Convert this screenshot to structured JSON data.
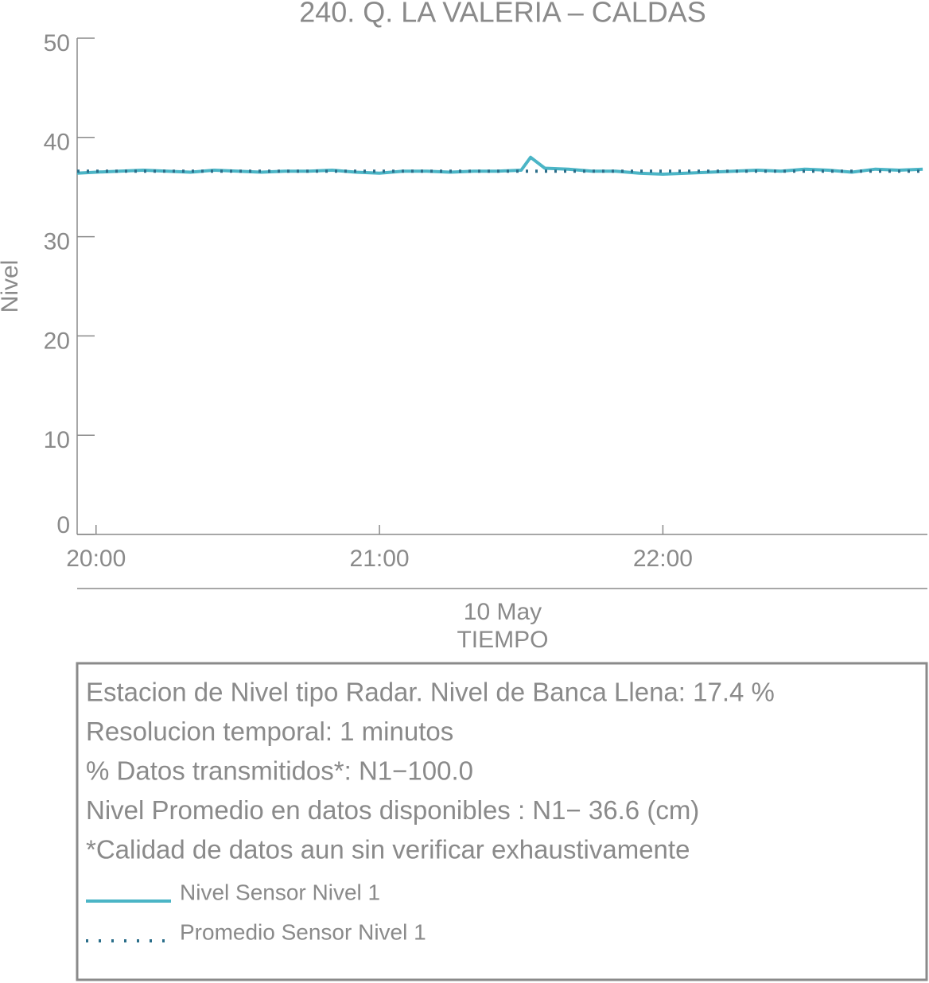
{
  "chart_data": {
    "type": "line",
    "title": "240. Q. LA VALERIA – CALDAS",
    "x_label": "TIEMPO",
    "date_label": "10 May",
    "y_label": "Nivel",
    "x": [
      "19:56",
      "20:00",
      "20:05",
      "20:10",
      "20:15",
      "20:20",
      "20:25",
      "20:30",
      "20:35",
      "20:40",
      "20:45",
      "20:50",
      "20:55",
      "21:00",
      "21:05",
      "21:10",
      "21:15",
      "21:20",
      "21:25",
      "21:30",
      "21:32",
      "21:35",
      "21:40",
      "21:45",
      "21:50",
      "21:55",
      "22:00",
      "22:05",
      "22:10",
      "22:15",
      "22:20",
      "22:25",
      "22:30",
      "22:35",
      "22:40",
      "22:45",
      "22:50",
      "22:55"
    ],
    "series": [
      {
        "name": "Nivel Sensor Nivel 1",
        "color": "#4bb5c6",
        "style": "solid",
        "values": [
          36.4,
          36.5,
          36.6,
          36.7,
          36.6,
          36.5,
          36.7,
          36.6,
          36.5,
          36.6,
          36.6,
          36.7,
          36.5,
          36.4,
          36.6,
          36.6,
          36.5,
          36.6,
          36.6,
          36.7,
          38.0,
          36.9,
          36.8,
          36.6,
          36.6,
          36.4,
          36.3,
          36.4,
          36.5,
          36.6,
          36.7,
          36.6,
          36.8,
          36.7,
          36.5,
          36.8,
          36.7,
          36.8
        ]
      },
      {
        "name": "Promedio Sensor Nivel 1",
        "color": "#2b6e8a",
        "style": "dotted",
        "values": [
          36.6,
          36.6,
          36.6,
          36.6,
          36.6,
          36.6,
          36.6,
          36.6,
          36.6,
          36.6,
          36.6,
          36.6,
          36.6,
          36.6,
          36.6,
          36.6,
          36.6,
          36.6,
          36.6,
          36.6,
          36.6,
          36.6,
          36.6,
          36.6,
          36.6,
          36.6,
          36.6,
          36.6,
          36.6,
          36.6,
          36.6,
          36.6,
          36.6,
          36.6,
          36.6,
          36.6,
          36.6,
          36.6
        ]
      }
    ],
    "xlim": [
      "19:56",
      "22:56"
    ],
    "xticks": [
      "20:00",
      "21:00",
      "22:00"
    ],
    "ylim": [
      0,
      50
    ],
    "yticks": [
      0,
      10,
      20,
      30,
      40,
      50
    ],
    "annotations": [
      "Estacion de Nivel tipo Radar. Nivel de Banca Llena: 17.4 %",
      "Resolucion temporal: 1 minutos",
      "% Datos transmitidos*: N1−100.0",
      "Nivel Promedio en datos disponibles : N1− 36.6 (cm)",
      "*Calidad de datos aun sin verificar exhaustivamente"
    ]
  }
}
